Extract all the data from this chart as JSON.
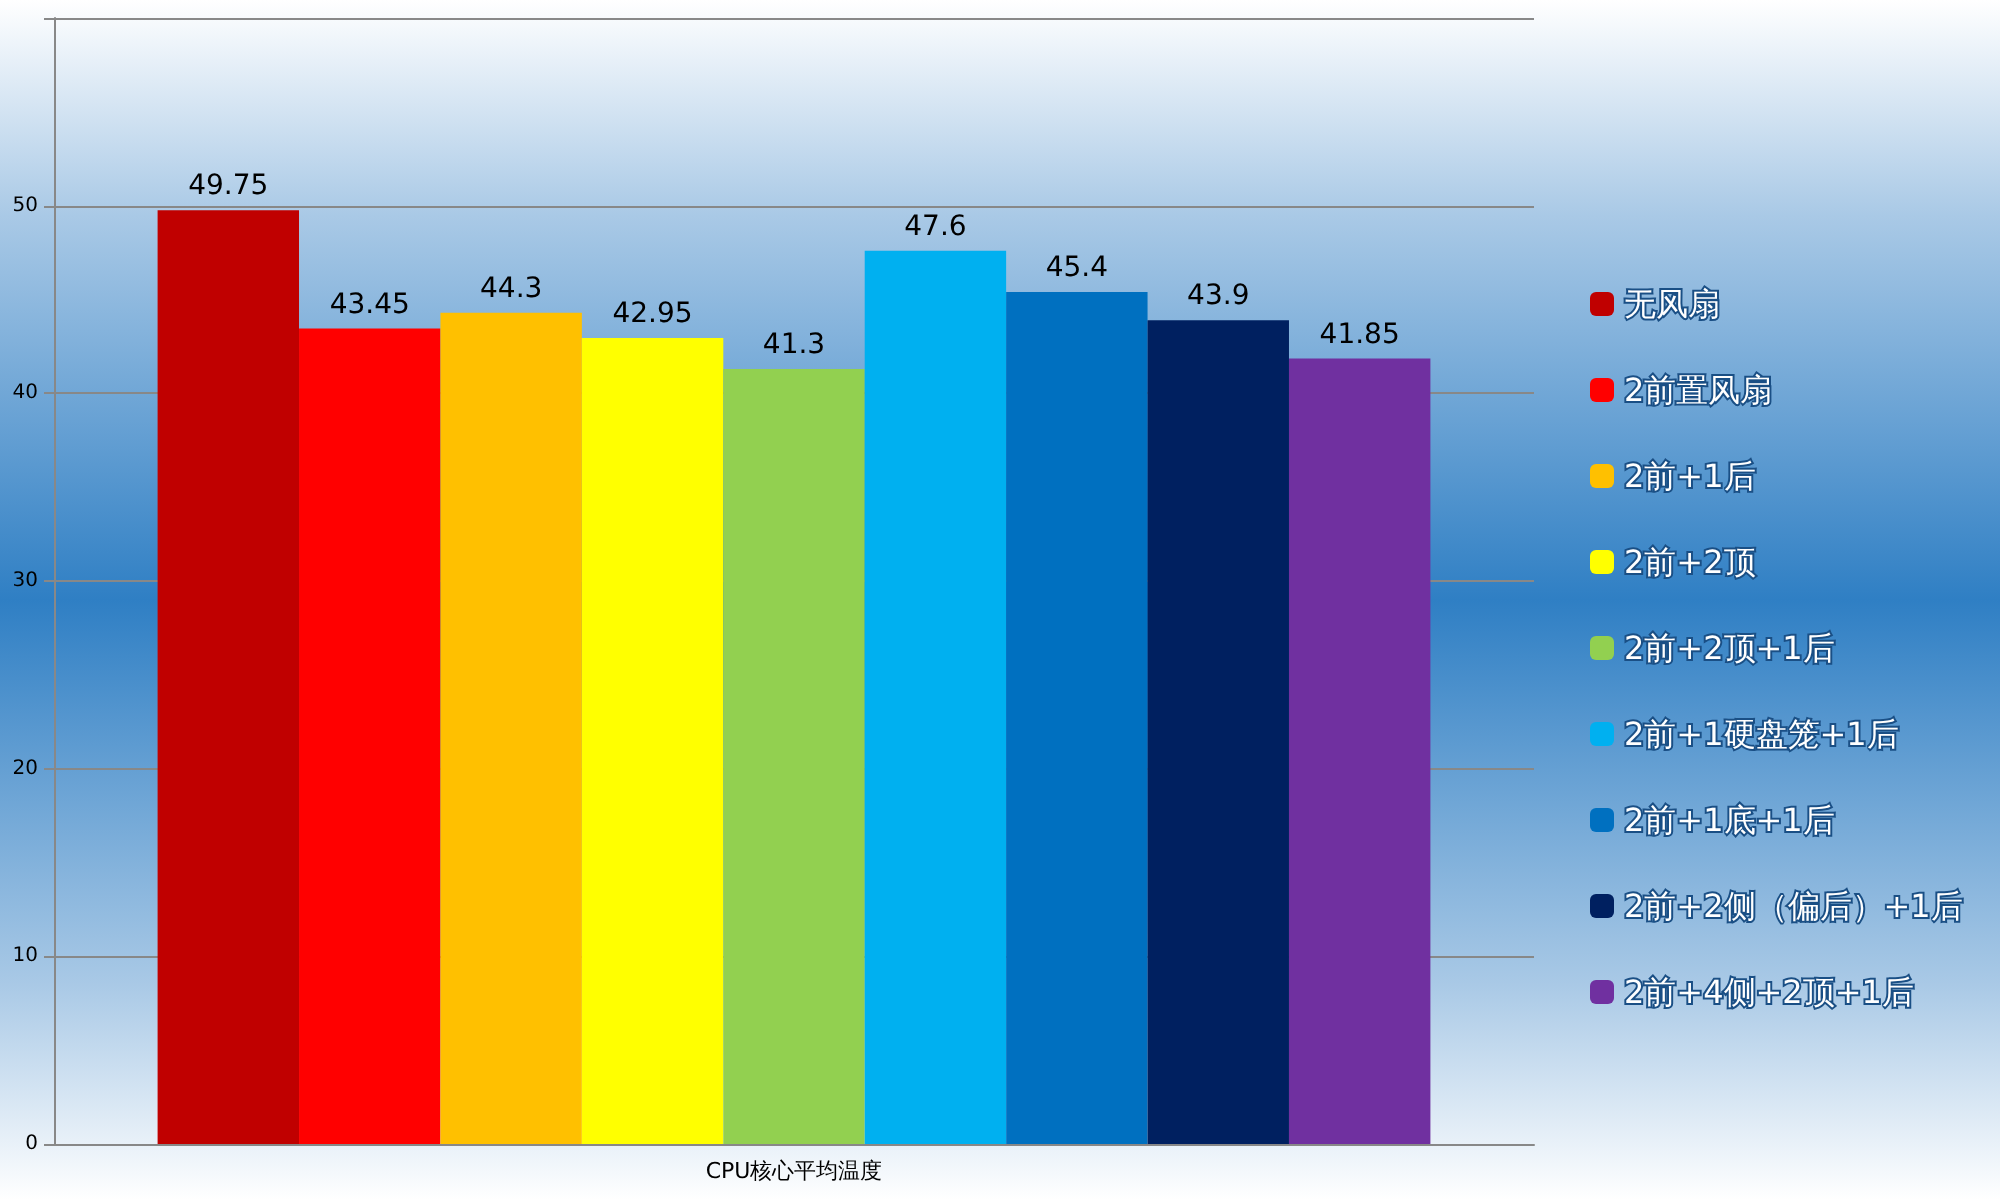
{
  "chart_data": {
    "type": "bar",
    "categories": [
      "CPU核心平均温度"
    ],
    "series": [
      {
        "name": "无风扇",
        "color": "#c00000",
        "values": [
          49.75
        ]
      },
      {
        "name": "2前置风扇",
        "color": "#ff0000",
        "values": [
          43.45
        ]
      },
      {
        "name": "2前+1后",
        "color": "#ffc000",
        "values": [
          44.3
        ]
      },
      {
        "name": "2前+2顶",
        "color": "#ffff00",
        "values": [
          42.95
        ]
      },
      {
        "name": "2前+2顶+1后",
        "color": "#92d050",
        "values": [
          41.3
        ]
      },
      {
        "name": "2前+1硬盘笼+1后",
        "color": "#00b0f0",
        "values": [
          47.6
        ]
      },
      {
        "name": "2前+1底+1后",
        "color": "#0070c0",
        "values": [
          45.4
        ]
      },
      {
        "name": "2前+2侧（偏后）+1后",
        "color": "#002060",
        "values": [
          43.9
        ]
      },
      {
        "name": "2前+4侧+2顶+1后",
        "color": "#7030a0",
        "values": [
          41.85
        ]
      }
    ],
    "ylim": [
      0,
      60
    ],
    "yticks": [
      0,
      10,
      20,
      30,
      40,
      50,
      {
        "value": 60,
        "label": null
      }
    ],
    "grid": "y",
    "legend": "right",
    "data_labels": true
  }
}
